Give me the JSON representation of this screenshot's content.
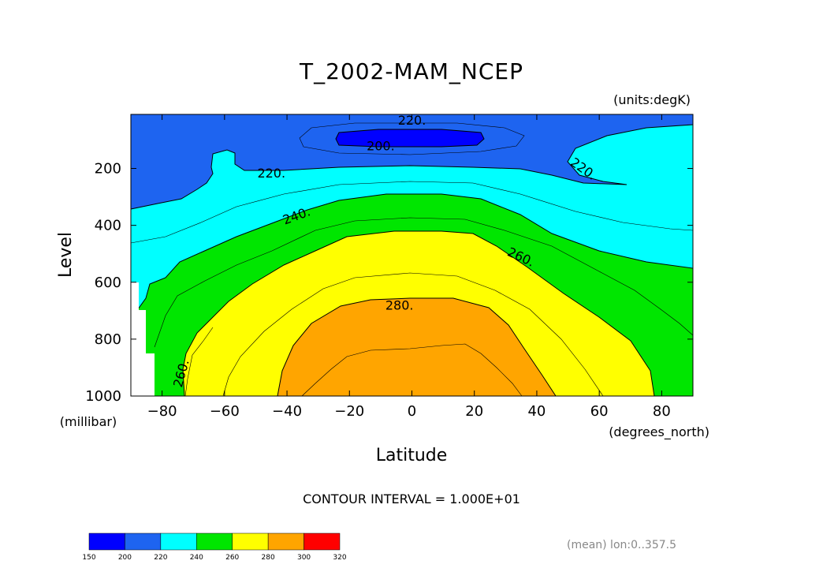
{
  "chart_data": {
    "type": "contour",
    "title": "T_2002-MAM_NCEP",
    "units_label": "(units:degK)",
    "xlabel": "Latitude",
    "x_units_label": "(degrees_north)",
    "ylabel": "Level",
    "y_units_label": "(millibar)",
    "xlim": [
      -90,
      90
    ],
    "ylim": [
      1000,
      10
    ],
    "x_ticks": [
      -80,
      -60,
      -40,
      -20,
      0,
      20,
      40,
      60,
      80
    ],
    "x_tick_labels": [
      "−80",
      "−60",
      "−40",
      "−20",
      "0",
      "20",
      "40",
      "60",
      "80"
    ],
    "y_ticks": [
      200,
      400,
      600,
      800,
      1000
    ],
    "y_tick_labels": [
      "200",
      "400",
      "600",
      "800",
      "1000"
    ],
    "contour_interval_text": "CONTOUR INTERVAL = 1.000E+01",
    "contour_labels": [
      {
        "text": "220.",
        "lat": 0,
        "lev": 30
      },
      {
        "text": "200.",
        "lat": -10,
        "lev": 120
      },
      {
        "text": "220.",
        "lat": -45,
        "lev": 215
      },
      {
        "text": "220.",
        "lat": 55,
        "lev": 200
      },
      {
        "text": "240.",
        "lat": -37,
        "lev": 365
      },
      {
        "text": "260.",
        "lat": 35,
        "lev": 510
      },
      {
        "text": "280.",
        "lat": -4,
        "lev": 680
      },
      {
        "text": "260.",
        "lat": -74,
        "lev": 920
      }
    ],
    "colorbar": {
      "levels": [
        150,
        200,
        220,
        240,
        260,
        280,
        300,
        320
      ],
      "labels": [
        "150",
        "200",
        "220",
        "240",
        "260",
        "280",
        "300",
        "320"
      ],
      "colors": [
        "#0000ff",
        "#1e64f0",
        "#00ffff",
        "#00e600",
        "#ffff00",
        "#ffa500",
        "#ff0000"
      ]
    },
    "footnote": "(mean) lon:0..357.5"
  }
}
